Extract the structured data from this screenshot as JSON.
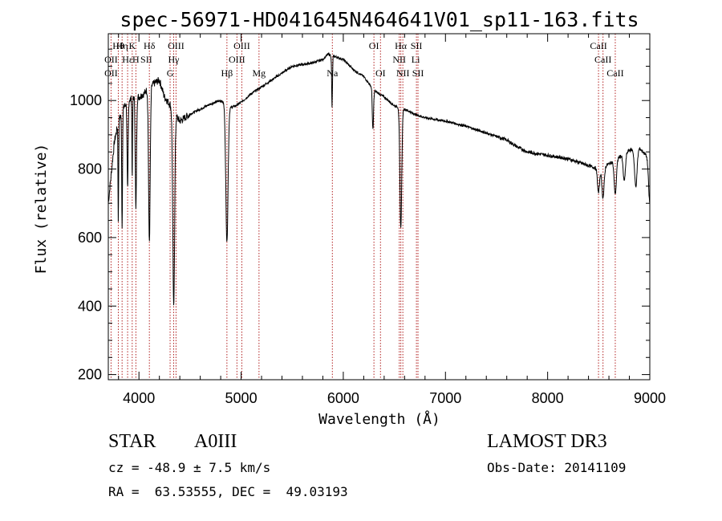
{
  "chart_data": {
    "type": "line",
    "title": "spec-56971-HD041645N464641V01_sp11-163.fits",
    "xlabel": "Wavelength (Å)",
    "ylabel": "Flux (relative)",
    "xlim": [
      3700,
      9000
    ],
    "ylim": [
      185,
      1195
    ],
    "xticks": [
      4000,
      5000,
      6000,
      7000,
      8000,
      9000
    ],
    "xtick_labels": [
      "4000",
      "5000",
      "6000",
      "7000",
      "8000",
      "9000"
    ],
    "yticks": [
      200,
      400,
      600,
      800,
      1000
    ],
    "ytick_labels": [
      "200",
      "400",
      "600",
      "800",
      "1000"
    ],
    "grid": false,
    "line_color": "#000000",
    "marker_color": "#b22222",
    "continuum": {
      "x": [
        3700,
        3760,
        3800,
        3850,
        3900,
        3950,
        4000,
        4050,
        4100,
        4150,
        4200,
        4250,
        4300,
        4350,
        4400,
        4450,
        4500,
        4600,
        4700,
        4800,
        4850,
        4900,
        4950,
        5000,
        5100,
        5200,
        5300,
        5400,
        5500,
        5600,
        5700,
        5800,
        5850,
        5900,
        5950,
        6000,
        6050,
        6100,
        6200,
        6300,
        6400,
        6500,
        6600,
        6700,
        6800,
        6900,
        7000,
        7200,
        7400,
        7600,
        7700,
        7800,
        8000,
        8200,
        8400,
        8500,
        8600,
        8700,
        8800,
        8900,
        9000
      ],
      "y": [
        700,
        880,
        940,
        980,
        1000,
        1010,
        1010,
        1020,
        1040,
        1050,
        1060,
        1010,
        990,
        960,
        940,
        950,
        960,
        975,
        990,
        1000,
        990,
        980,
        985,
        995,
        1020,
        1040,
        1060,
        1080,
        1100,
        1105,
        1110,
        1120,
        1135,
        1130,
        1125,
        1120,
        1105,
        1090,
        1070,
        1030,
        1010,
        985,
        975,
        960,
        950,
        945,
        940,
        925,
        905,
        885,
        865,
        850,
        840,
        830,
        810,
        800,
        815,
        835,
        855,
        860,
        830
      ]
    },
    "absorption_lines": [
      {
        "x": 3798,
        "depth": 300,
        "width": 3
      },
      {
        "x": 3835,
        "depth": 340,
        "width": 4
      },
      {
        "x": 3889,
        "depth": 260,
        "width": 5
      },
      {
        "x": 3934,
        "depth": 230,
        "width": 3
      },
      {
        "x": 3970,
        "depth": 330,
        "width": 6
      },
      {
        "x": 4102,
        "depth": 450,
        "width": 8
      },
      {
        "x": 4340,
        "depth": 570,
        "width": 9
      },
      {
        "x": 4861,
        "depth": 400,
        "width": 11
      },
      {
        "x": 5890,
        "depth": 150,
        "width": 4
      },
      {
        "x": 6290,
        "depth": 120,
        "width": 6
      },
      {
        "x": 6563,
        "depth": 350,
        "width": 9
      },
      {
        "x": 8498,
        "depth": 70,
        "width": 10
      },
      {
        "x": 8542,
        "depth": 90,
        "width": 11
      },
      {
        "x": 8662,
        "depth": 100,
        "width": 11
      },
      {
        "x": 8750,
        "depth": 80,
        "width": 11
      },
      {
        "x": 8863,
        "depth": 110,
        "width": 12
      },
      {
        "x": 9000,
        "depth": 130,
        "width": 12
      }
    ],
    "line_markers": [
      3727,
      3798,
      3835,
      3889,
      3934,
      3970,
      4102,
      4305,
      4340,
      4363,
      4861,
      4959,
      5007,
      5175,
      5893,
      6300,
      6364,
      6548,
      6563,
      6583,
      6716,
      6731,
      8498,
      8542,
      8662
    ],
    "line_labels": [
      {
        "text": "Hθ",
        "x": 3798,
        "row": 0
      },
      {
        "text": "Hη",
        "x": 3835,
        "row": 0
      },
      {
        "text": "K",
        "x": 3934,
        "row": 0
      },
      {
        "text": "Hδ",
        "x": 4102,
        "row": 0
      },
      {
        "text": "OIII",
        "x": 4363,
        "row": 0
      },
      {
        "text": "OIII",
        "x": 5007,
        "row": 0
      },
      {
        "text": "OI",
        "x": 6300,
        "row": 0
      },
      {
        "text": "Hα",
        "x": 6563,
        "row": 0
      },
      {
        "text": "SII",
        "x": 6716,
        "row": 0
      },
      {
        "text": "CaII",
        "x": 8498,
        "row": 0
      },
      {
        "text": "OII",
        "x": 3727,
        "row": 1
      },
      {
        "text": "Hε",
        "x": 3889,
        "row": 1
      },
      {
        "text": "H",
        "x": 3970,
        "row": 1
      },
      {
        "text": "SII",
        "x": 4072,
        "row": 1
      },
      {
        "text": "Hγ",
        "x": 4340,
        "row": 1
      },
      {
        "text": "OIII",
        "x": 4959,
        "row": 1
      },
      {
        "text": "NII",
        "x": 6548,
        "row": 1
      },
      {
        "text": "Li",
        "x": 6708,
        "row": 1
      },
      {
        "text": "CaII",
        "x": 8542,
        "row": 1
      },
      {
        "text": "OII",
        "x": 3727,
        "row": 2
      },
      {
        "text": "G",
        "x": 4305,
        "row": 2
      },
      {
        "text": "Hβ",
        "x": 4861,
        "row": 2
      },
      {
        "text": "Mg",
        "x": 5175,
        "row": 2
      },
      {
        "text": "Na",
        "x": 5893,
        "row": 2
      },
      {
        "text": "OI",
        "x": 6364,
        "row": 2
      },
      {
        "text": "NII",
        "x": 6583,
        "row": 2
      },
      {
        "text": "SII",
        "x": 6731,
        "row": 2
      },
      {
        "text": "CaII",
        "x": 8662,
        "row": 2
      }
    ]
  },
  "info": {
    "class": "STAR",
    "subclass": "A0III",
    "survey": "LAMOST DR3",
    "cz": "cz = -48.9 ± 7.5 km/s",
    "obs_date": "Obs-Date: 20141109",
    "coords": "RA =  63.53555, DEC =  49.03193"
  }
}
